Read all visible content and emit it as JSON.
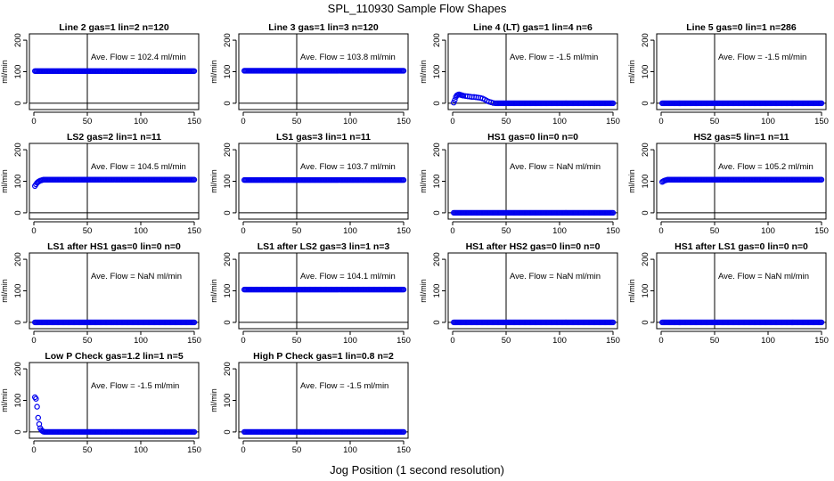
{
  "figure": {
    "title": "SPL_110930  Sample Flow Shapes",
    "xlabel": "Jog Position (1 second resolution)"
  },
  "colors": {
    "points": "#0000ee",
    "lines": "#000000"
  },
  "chart_data": [
    {
      "type": "scatter",
      "title": "Line 2 gas=1 lin=2 n=120",
      "ylabel": "ml/min",
      "xlim": [
        0,
        150
      ],
      "ylim": [
        -20,
        220
      ],
      "xticks": [
        0,
        50,
        100,
        150
      ],
      "yticks": [
        0,
        100,
        200
      ],
      "vline": 50,
      "hline": 0,
      "annotation": "Ave. Flow =  102.4  ml/min",
      "series": [
        {
          "segments": [
            [
              1,
              150,
              102,
              102
            ]
          ]
        }
      ]
    },
    {
      "type": "scatter",
      "title": "Line 3 gas=1 lin=3 n=120",
      "ylabel": "ml/min",
      "xlim": [
        0,
        150
      ],
      "ylim": [
        -20,
        220
      ],
      "xticks": [
        0,
        50,
        100,
        150
      ],
      "yticks": [
        0,
        100,
        200
      ],
      "vline": 50,
      "hline": 0,
      "annotation": "Ave. Flow =  103.8  ml/min",
      "series": [
        {
          "segments": [
            [
              1,
              150,
              103,
              103
            ]
          ]
        }
      ]
    },
    {
      "type": "scatter",
      "title": "Line 4 (LT) gas=1 lin=4 n=6",
      "ylabel": "ml/min",
      "xlim": [
        0,
        150
      ],
      "ylim": [
        -20,
        220
      ],
      "xticks": [
        0,
        50,
        100,
        150
      ],
      "yticks": [
        0,
        100,
        200
      ],
      "vline": 50,
      "hline": 0,
      "annotation": "Ave. Flow =  -1.5  ml/min",
      "series": [
        {
          "points": [
            [
              1,
              2
            ],
            [
              2,
              10
            ],
            [
              3,
              20
            ],
            [
              4,
              25
            ],
            [
              5,
              27
            ],
            [
              6,
              28
            ],
            [
              7,
              27
            ],
            [
              8,
              26
            ],
            [
              9,
              25
            ],
            [
              10,
              24
            ],
            [
              12,
              23
            ],
            [
              14,
              22
            ],
            [
              16,
              21
            ],
            [
              18,
              20
            ],
            [
              20,
              20
            ],
            [
              22,
              19
            ],
            [
              24,
              18
            ],
            [
              26,
              17
            ],
            [
              28,
              15
            ],
            [
              30,
              12
            ],
            [
              32,
              8
            ],
            [
              34,
              5
            ],
            [
              36,
              3
            ],
            [
              38,
              1
            ]
          ],
          "segments": [
            [
              40,
              150,
              0,
              0
            ]
          ]
        }
      ]
    },
    {
      "type": "scatter",
      "title": "Line 5 gas=0 lin=1 n=286",
      "ylabel": "ml/min",
      "xlim": [
        0,
        150
      ],
      "ylim": [
        -20,
        220
      ],
      "xticks": [
        0,
        50,
        100,
        150
      ],
      "yticks": [
        0,
        100,
        200
      ],
      "vline": 50,
      "hline": 0,
      "annotation": "Ave. Flow =  -1.5  ml/min",
      "series": [
        {
          "segments": [
            [
              1,
              150,
              0,
              0
            ]
          ]
        }
      ]
    },
    {
      "type": "scatter",
      "title": "LS2 gas=2 lin=1 n=11",
      "ylabel": "ml/min",
      "xlim": [
        0,
        150
      ],
      "ylim": [
        -20,
        220
      ],
      "xticks": [
        0,
        50,
        100,
        150
      ],
      "yticks": [
        0,
        100,
        200
      ],
      "vline": 50,
      "hline": 0,
      "annotation": "Ave. Flow =  104.5  ml/min",
      "series": [
        {
          "points": [
            [
              1,
              85
            ],
            [
              2,
              90
            ],
            [
              3,
              95
            ],
            [
              4,
              98
            ],
            [
              5,
              100
            ],
            [
              6,
              102
            ],
            [
              7,
              103
            ],
            [
              8,
              104
            ]
          ],
          "segments": [
            [
              9,
              150,
              105,
              105
            ]
          ]
        }
      ]
    },
    {
      "type": "scatter",
      "title": "LS1 gas=3 lin=1 n=11",
      "ylabel": "ml/min",
      "xlim": [
        0,
        150
      ],
      "ylim": [
        -20,
        220
      ],
      "xticks": [
        0,
        50,
        100,
        150
      ],
      "yticks": [
        0,
        100,
        200
      ],
      "vline": 50,
      "hline": 0,
      "annotation": "Ave. Flow =  103.7  ml/min",
      "series": [
        {
          "segments": [
            [
              1,
              150,
              104,
              104
            ]
          ]
        }
      ]
    },
    {
      "type": "scatter",
      "title": "HS1 gas=0 lin=0 n=0",
      "ylabel": "ml/min",
      "xlim": [
        0,
        150
      ],
      "ylim": [
        -20,
        220
      ],
      "xticks": [
        0,
        50,
        100,
        150
      ],
      "yticks": [
        0,
        100,
        200
      ],
      "vline": 50,
      "hline": 0,
      "annotation": "Ave. Flow =  NaN  ml/min",
      "series": [
        {
          "segments": [
            [
              1,
              150,
              0,
              0
            ]
          ]
        }
      ]
    },
    {
      "type": "scatter",
      "title": "HS2 gas=5 lin=1 n=11",
      "ylabel": "ml/min",
      "xlim": [
        0,
        150
      ],
      "ylim": [
        -20,
        220
      ],
      "xticks": [
        0,
        50,
        100,
        150
      ],
      "yticks": [
        0,
        100,
        200
      ],
      "vline": 50,
      "hline": 0,
      "annotation": "Ave. Flow =  105.2  ml/min",
      "series": [
        {
          "points": [
            [
              1,
              98
            ],
            [
              2,
              100
            ],
            [
              3,
              102
            ],
            [
              4,
              103
            ],
            [
              5,
              104
            ]
          ],
          "segments": [
            [
              6,
              150,
              105,
              105
            ]
          ]
        }
      ]
    },
    {
      "type": "scatter",
      "title": "LS1 after HS1 gas=0 lin=0 n=0",
      "ylabel": "ml/min",
      "xlim": [
        0,
        150
      ],
      "ylim": [
        -20,
        220
      ],
      "xticks": [
        0,
        50,
        100,
        150
      ],
      "yticks": [
        0,
        100,
        200
      ],
      "vline": 50,
      "hline": 0,
      "annotation": "Ave. Flow =  NaN  ml/min",
      "series": [
        {
          "segments": [
            [
              1,
              150,
              0,
              0
            ]
          ]
        }
      ]
    },
    {
      "type": "scatter",
      "title": "LS1 after LS2 gas=3 lin=1 n=3",
      "ylabel": "ml/min",
      "xlim": [
        0,
        150
      ],
      "ylim": [
        -20,
        220
      ],
      "xticks": [
        0,
        50,
        100,
        150
      ],
      "yticks": [
        0,
        100,
        200
      ],
      "vline": 50,
      "hline": 0,
      "annotation": "Ave. Flow =  104.1  ml/min",
      "series": [
        {
          "segments": [
            [
              1,
              150,
              104,
              104
            ]
          ]
        }
      ]
    },
    {
      "type": "scatter",
      "title": "HS1 after HS2 gas=0 lin=0 n=0",
      "ylabel": "ml/min",
      "xlim": [
        0,
        150
      ],
      "ylim": [
        -20,
        220
      ],
      "xticks": [
        0,
        50,
        100,
        150
      ],
      "yticks": [
        0,
        100,
        200
      ],
      "vline": 50,
      "hline": 0,
      "annotation": "Ave. Flow =  NaN  ml/min",
      "series": [
        {
          "segments": [
            [
              1,
              150,
              0,
              0
            ]
          ]
        }
      ]
    },
    {
      "type": "scatter",
      "title": "HS1 after LS1 gas=0 lin=0 n=0",
      "ylabel": "ml/min",
      "xlim": [
        0,
        150
      ],
      "ylim": [
        -20,
        220
      ],
      "xticks": [
        0,
        50,
        100,
        150
      ],
      "yticks": [
        0,
        100,
        200
      ],
      "vline": 50,
      "hline": 0,
      "annotation": "Ave. Flow =  NaN  ml/min",
      "series": [
        {
          "segments": [
            [
              1,
              150,
              0,
              0
            ]
          ]
        }
      ]
    },
    {
      "type": "scatter",
      "title": "Low P Check gas=1.2 lin=1 n=5",
      "ylabel": "ml/min",
      "xlim": [
        0,
        150
      ],
      "ylim": [
        -20,
        220
      ],
      "xticks": [
        0,
        50,
        100,
        150
      ],
      "yticks": [
        0,
        100,
        200
      ],
      "vline": 50,
      "hline": 0,
      "annotation": "Ave. Flow =  -1.5  ml/min",
      "series": [
        {
          "points": [
            [
              1,
              110
            ],
            [
              2,
              105
            ],
            [
              3,
              80
            ],
            [
              4,
              45
            ],
            [
              5,
              25
            ],
            [
              6,
              12
            ],
            [
              7,
              6
            ],
            [
              8,
              3
            ],
            [
              9,
              1
            ],
            [
              10,
              0
            ]
          ],
          "segments": [
            [
              11,
              150,
              0,
              0
            ]
          ]
        }
      ]
    },
    {
      "type": "scatter",
      "title": "High P Check gas=1 lin=0.8 n=2",
      "ylabel": "ml/min",
      "xlim": [
        0,
        150
      ],
      "ylim": [
        -20,
        220
      ],
      "xticks": [
        0,
        50,
        100,
        150
      ],
      "yticks": [
        0,
        100,
        200
      ],
      "vline": 50,
      "hline": 0,
      "annotation": "Ave. Flow =  -1.5  ml/min",
      "series": [
        {
          "segments": [
            [
              1,
              150,
              0,
              0
            ]
          ]
        }
      ]
    }
  ]
}
